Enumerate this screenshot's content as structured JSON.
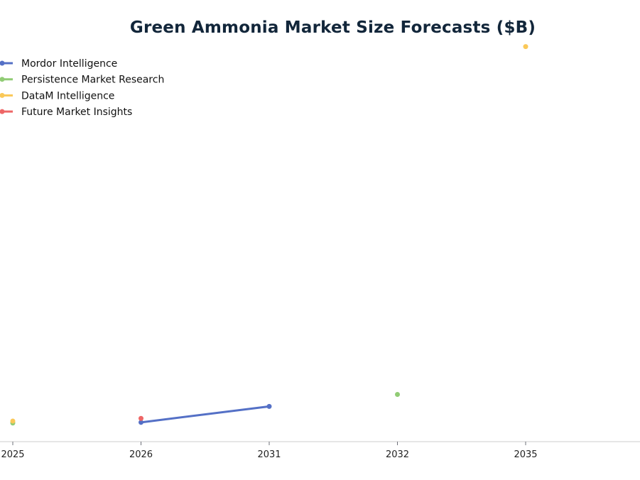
{
  "chart_data": {
    "type": "line",
    "title": "Green Ammonia Market Size Forecasts ($B)",
    "xlabel": "",
    "ylabel": "",
    "categories": [
      "2025",
      "2026",
      "2031",
      "2032",
      "2035"
    ],
    "ylim": [
      0,
      60
    ],
    "grid": false,
    "y_axis_visible": false,
    "legend_placement": "top-left",
    "series": [
      {
        "name": "Mordor Intelligence",
        "color": "#5470c6",
        "points": [
          {
            "x": "2026",
            "y": 2.9
          },
          {
            "x": "2031",
            "y": 5.3
          }
        ]
      },
      {
        "name": "Persistence Market Research",
        "color": "#91cc75",
        "points": [
          {
            "x": "2025",
            "y": 2.8
          },
          {
            "x": "2032",
            "y": 7.1
          }
        ]
      },
      {
        "name": "DataM Intelligence",
        "color": "#fac858",
        "points": [
          {
            "x": "2025",
            "y": 3.1
          },
          {
            "x": "2035",
            "y": 59.4
          }
        ]
      },
      {
        "name": "Future Market Insights",
        "color": "#ee6666",
        "points": [
          {
            "x": "2026",
            "y": 3.5
          }
        ]
      }
    ]
  }
}
